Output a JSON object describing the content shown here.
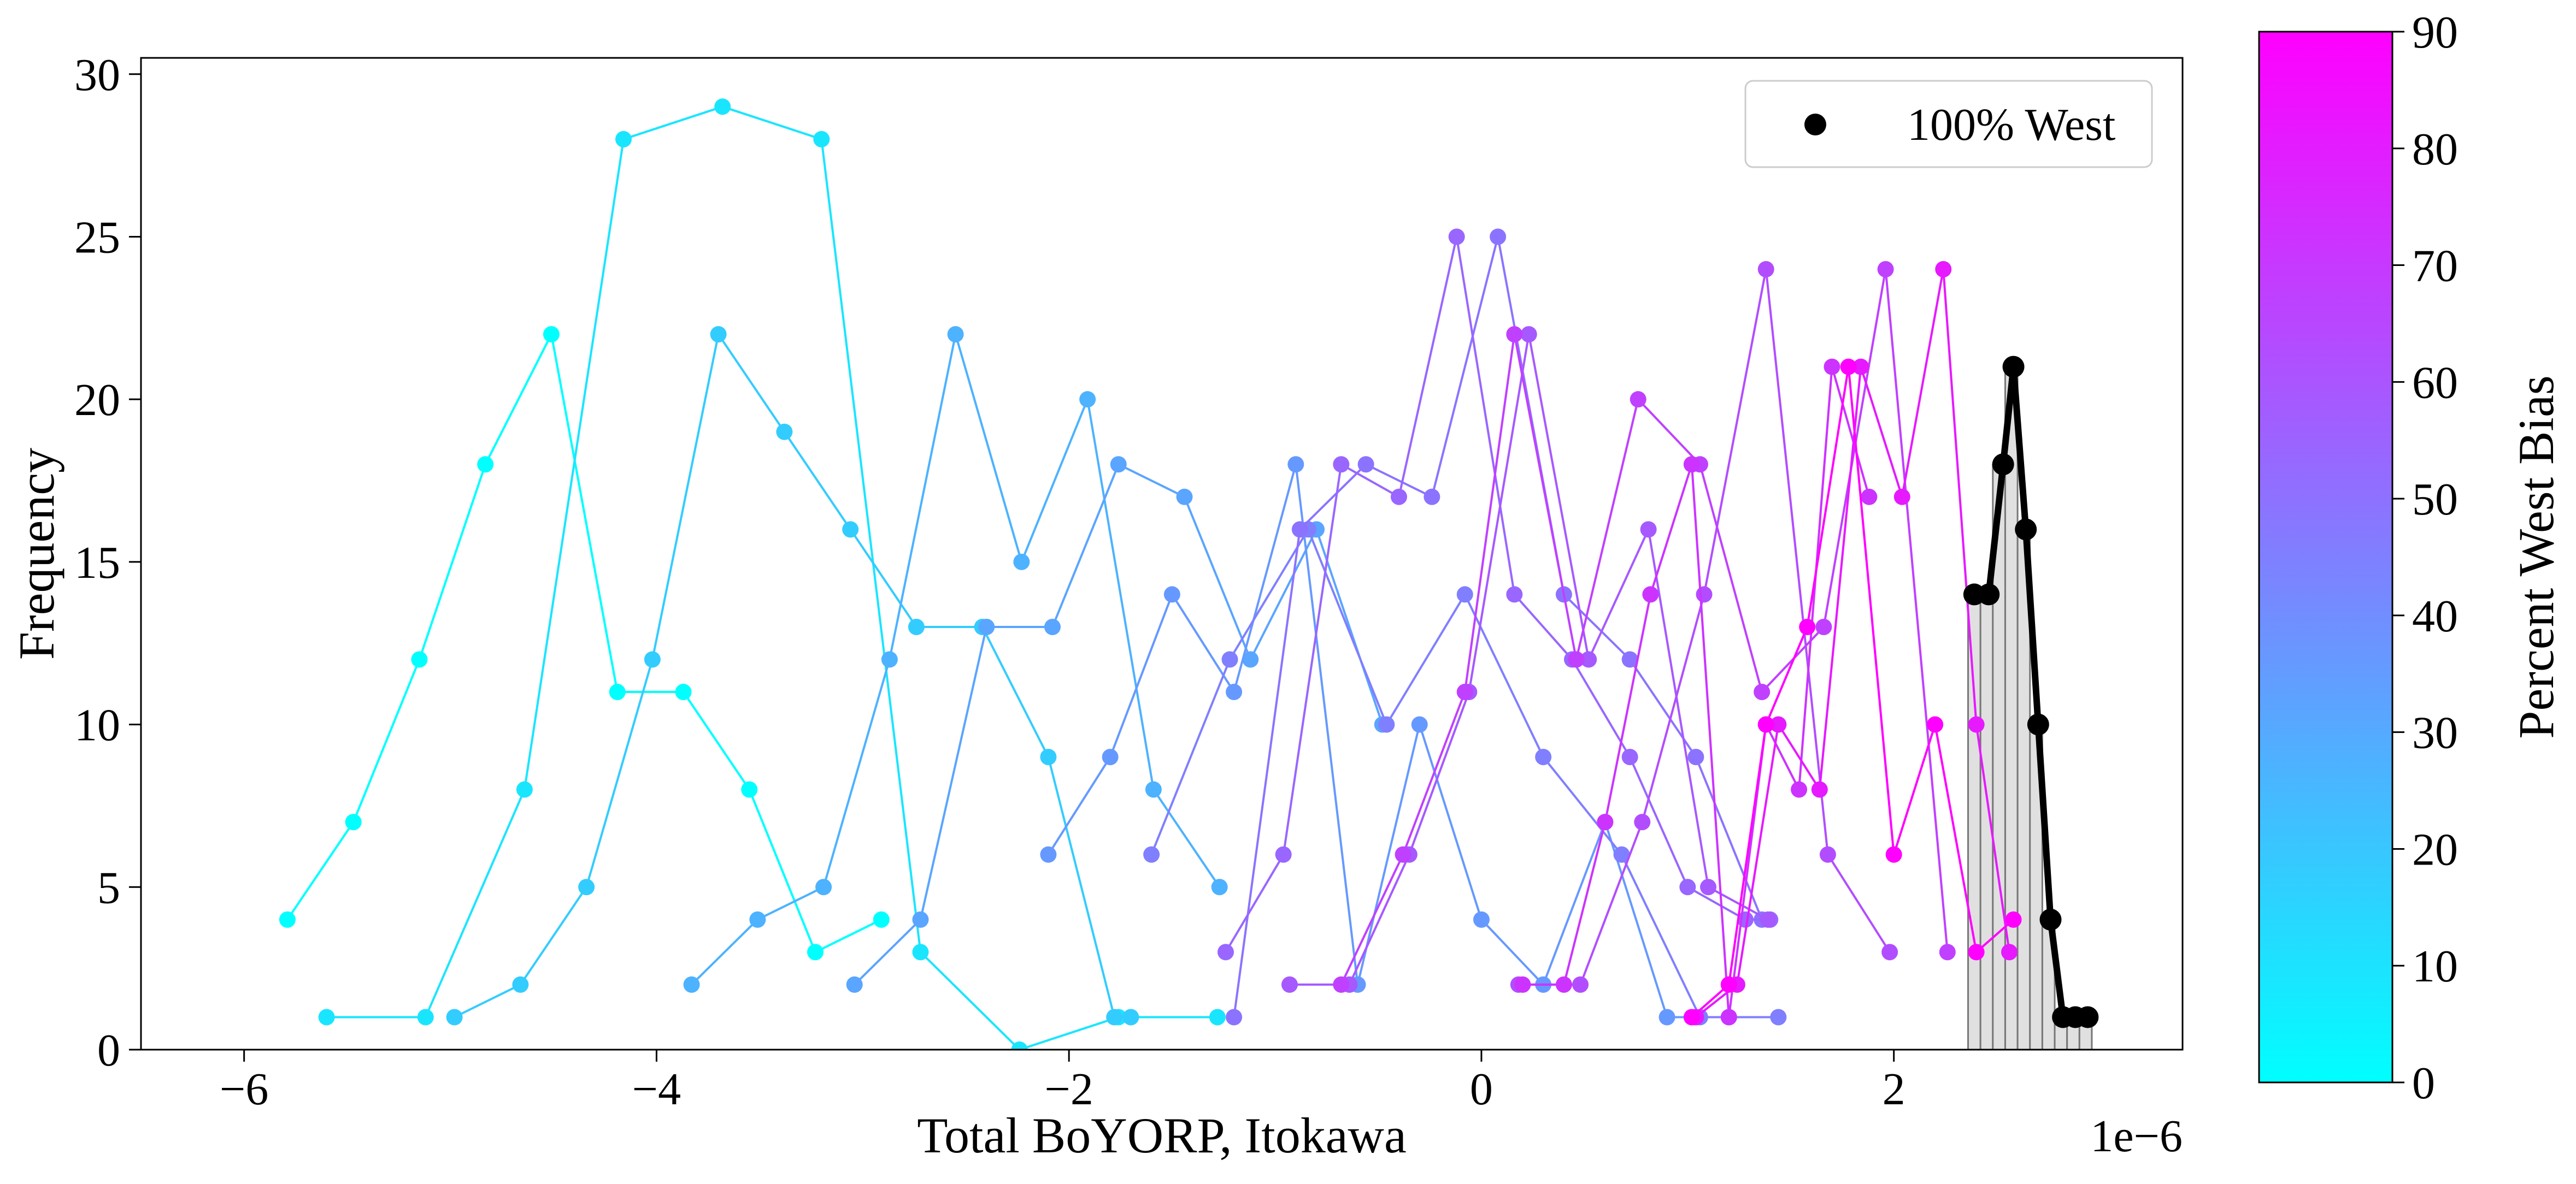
{
  "chart_data": {
    "type": "line",
    "xlabel": "Total BoYORP, Itokawa",
    "ylabel": "Frequency",
    "x_offset_text": "1e−6",
    "xlim": [
      -6.5,
      3.4
    ],
    "ylim": [
      0,
      30.5
    ],
    "x_ticks": [
      -6,
      -4,
      -2,
      0,
      2
    ],
    "x_tick_labels": [
      "−6",
      "−4",
      "−2",
      "0",
      "2"
    ],
    "y_ticks": [
      0,
      5,
      10,
      15,
      20,
      25,
      30
    ],
    "y_tick_labels": [
      "0",
      "5",
      "10",
      "15",
      "20",
      "25",
      "30"
    ],
    "grid": false,
    "legend": {
      "placement": "top-right",
      "entries": [
        {
          "label": "100% West",
          "color": "#000000"
        }
      ]
    },
    "colorbar": {
      "label": "Percent West Bias",
      "range": [
        0,
        90
      ],
      "ticks": [
        0,
        10,
        20,
        30,
        40,
        50,
        60,
        70,
        80,
        90
      ],
      "tick_labels": [
        "0",
        "10",
        "20",
        "30",
        "40",
        "50",
        "60",
        "70",
        "80",
        "90"
      ],
      "color_low": "#00ffff",
      "color_high": "#ff00ff"
    },
    "series": [
      {
        "bias": 0,
        "color": "#00ffff",
        "x": [
          -5.79,
          -5.47,
          -5.15,
          -4.83,
          -4.51,
          -4.19,
          -3.87,
          -3.55,
          -3.23,
          -2.91
        ],
        "y": [
          4,
          7,
          12,
          18,
          22,
          11,
          11,
          8,
          3,
          4
        ]
      },
      {
        "bias": 10,
        "color": "#1ae5ff",
        "x": [
          -5.6,
          -5.12,
          -4.64,
          -4.16,
          -3.68,
          -3.2,
          -2.72,
          -2.24,
          -1.76,
          -1.28
        ],
        "y": [
          1,
          1,
          8,
          28,
          29,
          28,
          3,
          0,
          1,
          1
        ]
      },
      {
        "bias": 20,
        "color": "#33ccff",
        "x": [
          -4.98,
          -4.66,
          -4.34,
          -4.02,
          -3.7,
          -3.38,
          -3.06,
          -2.74,
          -2.42,
          -2.1,
          -1.78,
          -1.7
        ],
        "y": [
          1,
          2,
          5,
          12,
          22,
          19,
          16,
          13,
          13,
          9,
          1,
          1
        ]
      },
      {
        "bias": 30,
        "color": "#4db2ff",
        "x": [
          -3.83,
          -3.51,
          -3.19,
          -2.87,
          -2.55,
          -2.23,
          -1.91,
          -1.59,
          -1.27
        ],
        "y": [
          2,
          4,
          5,
          12,
          22,
          15,
          20,
          8,
          5
        ]
      },
      {
        "bias": 35,
        "color": "#5aa5ff",
        "x": [
          -3.04,
          -2.72,
          -2.4,
          -2.08,
          -1.76,
          -1.44,
          -1.12,
          -0.8,
          -0.48
        ],
        "y": [
          2,
          4,
          13,
          13,
          18,
          17,
          12,
          16,
          10
        ]
      },
      {
        "bias": 40,
        "color": "#6699ff",
        "x": [
          -2.1,
          -1.8,
          -1.5,
          -1.2,
          -0.9,
          -0.6,
          -0.3,
          0.0,
          0.3,
          0.6,
          0.9,
          1.2
        ],
        "y": [
          6,
          9,
          14,
          11,
          18,
          2,
          10,
          4,
          2,
          7,
          1,
          1
        ]
      },
      {
        "bias": 50,
        "color": "#807fff",
        "x": [
          -1.6,
          -1.22,
          -0.84,
          -0.46,
          -0.08,
          0.3,
          0.68,
          1.06,
          1.44
        ],
        "y": [
          6,
          12,
          16,
          10,
          14,
          9,
          6,
          1,
          1
        ]
      },
      {
        "bias": 55,
        "color": "#8c73ff",
        "x": [
          -1.2,
          -0.88,
          -0.56,
          -0.24,
          0.08,
          0.4,
          0.72,
          1.04,
          1.36
        ],
        "y": [
          1,
          16,
          18,
          17,
          25,
          14,
          12,
          9,
          4
        ]
      },
      {
        "bias": 60,
        "color": "#9966ff",
        "x": [
          -1.24,
          -0.96,
          -0.68,
          -0.4,
          -0.12,
          0.16,
          0.44,
          0.72,
          1.0,
          1.28,
          1.4
        ],
        "y": [
          3,
          6,
          18,
          17,
          25,
          14,
          12,
          9,
          5,
          4,
          4
        ]
      },
      {
        "bias": 65,
        "color": "#a659ff",
        "x": [
          -0.93,
          -0.64,
          -0.35,
          -0.06,
          0.23,
          0.52,
          0.81,
          1.1,
          1.39
        ],
        "y": [
          2,
          2,
          6,
          11,
          22,
          12,
          16,
          5,
          4
        ]
      },
      {
        "bias": 70,
        "color": "#b24dff",
        "x": [
          0.18,
          0.48,
          0.78,
          1.08,
          1.38,
          1.68,
          1.98
        ],
        "y": [
          2,
          2,
          7,
          14,
          24,
          6,
          3
        ]
      },
      {
        "bias": 75,
        "color": "#c040ff",
        "x": [
          -0.68,
          -0.38,
          -0.08,
          0.16,
          0.46,
          0.76,
          1.06,
          1.36,
          1.66,
          1.96,
          2.26
        ],
        "y": [
          2,
          6,
          11,
          22,
          12,
          20,
          18,
          11,
          13,
          24,
          3
        ]
      },
      {
        "bias": 80,
        "color": "#cc33ff",
        "x": [
          0.2,
          0.4,
          0.6,
          0.82,
          1.02,
          1.2,
          1.38,
          1.54,
          1.7,
          1.88
        ],
        "y": [
          2,
          2,
          7,
          14,
          18,
          1,
          10,
          8,
          21,
          17
        ]
      },
      {
        "bias": 85,
        "color": "#e619ff",
        "x": [
          1.04,
          1.24,
          1.44,
          1.64,
          1.84,
          2.04,
          2.24,
          2.4,
          2.56
        ],
        "y": [
          1,
          2,
          10,
          8,
          21,
          17,
          24,
          10,
          3
        ]
      },
      {
        "bias": 90,
        "color": "#ff00ff",
        "x": [
          1.02,
          1.2,
          1.38,
          1.58,
          1.78,
          2.0,
          2.2,
          2.4,
          2.58
        ],
        "y": [
          1,
          2,
          10,
          13,
          21,
          6,
          10,
          3,
          4
        ]
      },
      {
        "bias": 100,
        "name": "100% West",
        "color": "#000000",
        "emphasis": true,
        "x": [
          2.39,
          2.46,
          2.53,
          2.58,
          2.64,
          2.7,
          2.76,
          2.82,
          2.88,
          2.94
        ],
        "y": [
          14,
          14,
          18,
          21,
          16,
          10,
          4,
          1,
          1,
          1
        ]
      }
    ],
    "histogram": {
      "color": "#e0e0e0",
      "edge_color": "#777777",
      "bins": [
        {
          "x0": 2.36,
          "x1": 2.42,
          "count": 14
        },
        {
          "x0": 2.42,
          "x1": 2.48,
          "count": 14
        },
        {
          "x0": 2.48,
          "x1": 2.54,
          "count": 18
        },
        {
          "x0": 2.54,
          "x1": 2.6,
          "count": 21
        },
        {
          "x0": 2.6,
          "x1": 2.66,
          "count": 16
        },
        {
          "x0": 2.66,
          "x1": 2.72,
          "count": 10
        },
        {
          "x0": 2.72,
          "x1": 2.78,
          "count": 4
        },
        {
          "x0": 2.78,
          "x1": 2.84,
          "count": 1
        },
        {
          "x0": 2.84,
          "x1": 2.9,
          "count": 1
        },
        {
          "x0": 2.9,
          "x1": 2.96,
          "count": 1
        }
      ]
    }
  }
}
